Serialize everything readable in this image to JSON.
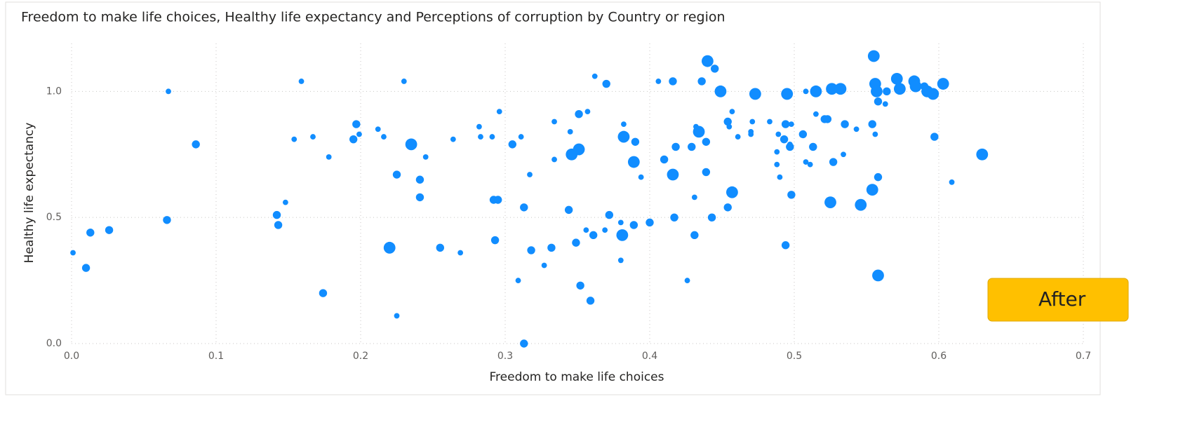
{
  "chart_data": {
    "type": "scatter",
    "title": "Freedom to make life choices, Healthy life expectancy and Perceptions of corruption by Country or region",
    "x_label": "Freedom to make life choices",
    "y_label": "Healthy life expectancy",
    "annotation": "After",
    "color": "#118dff",
    "grid": true,
    "xlim": [
      0,
      0.7
    ],
    "ylim": [
      0,
      1.19
    ],
    "xticks": [
      {
        "value": 0,
        "label": "0.0"
      },
      0.1,
      0.2,
      0.3,
      0.4,
      0.5,
      0.6,
      0.7
    ],
    "yticks": [
      {
        "value": 0,
        "label": "0.0"
      },
      0.5,
      {
        "value": 1,
        "label": "1.0"
      }
    ],
    "x": [
      0.001,
      0.01,
      0.013,
      0.026,
      0.067,
      0.066,
      0.086,
      0.142,
      0.143,
      0.148,
      0.154,
      0.159,
      0.167,
      0.174,
      0.178,
      0.195,
      0.197,
      0.199,
      0.212,
      0.216,
      0.22,
      0.225,
      0.225,
      0.23,
      0.235,
      0.241,
      0.241,
      0.245,
      0.255,
      0.264,
      0.269,
      0.282,
      0.283,
      0.291,
      0.292,
      0.293,
      0.295,
      0.296,
      0.305,
      0.309,
      0.311,
      0.313,
      0.313,
      0.317,
      0.318,
      0.327,
      0.332,
      0.334,
      0.334,
      0.344,
      0.345,
      0.346,
      0.349,
      0.351,
      0.351,
      0.352,
      0.357,
      0.356,
      0.359,
      0.361,
      0.362,
      0.37,
      0.369,
      0.372,
      0.38,
      0.38,
      0.381,
      0.382,
      0.382,
      0.389,
      0.389,
      0.39,
      0.394,
      0.4,
      0.406,
      0.41,
      0.416,
      0.416,
      0.417,
      0.418,
      0.426,
      0.429,
      0.431,
      0.431,
      0.432,
      0.434,
      0.436,
      0.439,
      0.439,
      0.44,
      0.443,
      0.445,
      0.449,
      0.454,
      0.454,
      0.455,
      0.457,
      0.457,
      0.461,
      0.47,
      0.47,
      0.471,
      0.473,
      0.483,
      0.488,
      0.488,
      0.489,
      0.49,
      0.493,
      0.494,
      0.494,
      0.495,
      0.497,
      0.497,
      0.498,
      0.498,
      0.506,
      0.508,
      0.508,
      0.511,
      0.513,
      0.515,
      0.515,
      0.521,
      0.523,
      0.525,
      0.526,
      0.527,
      0.532,
      0.534,
      0.535,
      0.543,
      0.546,
      0.554,
      0.554,
      0.555,
      0.556,
      0.556,
      0.557,
      0.558,
      0.558,
      0.558,
      0.563,
      0.564,
      0.571,
      0.573,
      0.583,
      0.584,
      0.59,
      0.592,
      0.596,
      0.597,
      0.603,
      0.609,
      0.63
    ],
    "values": [
      0.36,
      0.3,
      0.44,
      0.45,
      1.0,
      0.49,
      0.79,
      0.51,
      0.47,
      0.56,
      0.81,
      1.04,
      0.82,
      0.2,
      0.74,
      0.81,
      0.87,
      0.83,
      0.85,
      0.82,
      0.38,
      0.11,
      0.67,
      1.04,
      0.79,
      0.65,
      0.58,
      0.74,
      0.38,
      0.81,
      0.36,
      0.86,
      0.82,
      0.82,
      0.57,
      0.41,
      0.57,
      0.92,
      0.79,
      0.25,
      0.82,
      0.0,
      0.54,
      0.67,
      0.37,
      0.31,
      0.38,
      0.73,
      0.88,
      0.53,
      0.84,
      0.75,
      0.4,
      0.77,
      0.91,
      0.23,
      0.92,
      0.45,
      0.17,
      0.43,
      1.06,
      1.03,
      0.45,
      0.51,
      0.48,
      0.33,
      0.43,
      0.87,
      0.82,
      0.47,
      0.72,
      0.8,
      0.66,
      0.48,
      1.04,
      0.73,
      1.04,
      0.67,
      0.5,
      0.78,
      0.25,
      0.78,
      0.43,
      0.58,
      0.86,
      0.84,
      1.04,
      0.8,
      0.68,
      1.12,
      0.5,
      1.09,
      1.0,
      0.54,
      0.88,
      0.86,
      0.6,
      0.92,
      0.82,
      0.84,
      0.83,
      0.88,
      0.99,
      0.88,
      0.76,
      0.71,
      0.83,
      0.66,
      0.81,
      0.39,
      0.87,
      0.99,
      0.78,
      0.79,
      0.87,
      0.59,
      0.83,
      0.72,
      1.0,
      0.71,
      0.78,
      1.0,
      0.91,
      0.89,
      0.89,
      0.56,
      1.01,
      0.72,
      1.01,
      0.75,
      0.87,
      0.85,
      0.55,
      0.87,
      0.61,
      1.14,
      0.83,
      1.03,
      1.0,
      0.96,
      0.66,
      0.27,
      0.95,
      1.0,
      1.05,
      1.01,
      1.04,
      1.02,
      1.02,
      1.0,
      0.99,
      0.82,
      1.03,
      0.64,
      0.75
    ],
    "sizes": [
      0.05,
      0.15,
      0.15,
      0.15,
      0.05,
      0.15,
      0.15,
      0.15,
      0.15,
      0.05,
      0.05,
      0.05,
      0.05,
      0.15,
      0.05,
      0.15,
      0.15,
      0.05,
      0.05,
      0.05,
      0.3,
      0.05,
      0.15,
      0.05,
      0.3,
      0.15,
      0.15,
      0.05,
      0.15,
      0.05,
      0.05,
      0.05,
      0.05,
      0.05,
      0.15,
      0.15,
      0.15,
      0.05,
      0.15,
      0.05,
      0.05,
      0.15,
      0.15,
      0.05,
      0.15,
      0.05,
      0.15,
      0.05,
      0.05,
      0.15,
      0.05,
      0.3,
      0.15,
      0.3,
      0.15,
      0.15,
      0.05,
      0.05,
      0.15,
      0.15,
      0.05,
      0.15,
      0.05,
      0.15,
      0.05,
      0.05,
      0.3,
      0.05,
      0.3,
      0.15,
      0.3,
      0.15,
      0.05,
      0.15,
      0.05,
      0.15,
      0.15,
      0.3,
      0.15,
      0.15,
      0.05,
      0.15,
      0.15,
      0.05,
      0.05,
      0.3,
      0.15,
      0.15,
      0.15,
      0.3,
      0.15,
      0.15,
      0.3,
      0.15,
      0.15,
      0.05,
      0.3,
      0.05,
      0.05,
      0.05,
      0.05,
      0.05,
      0.3,
      0.05,
      0.05,
      0.05,
      0.05,
      0.05,
      0.15,
      0.15,
      0.15,
      0.3,
      0.15,
      0.05,
      0.05,
      0.15,
      0.15,
      0.05,
      0.05,
      0.05,
      0.15,
      0.3,
      0.05,
      0.15,
      0.15,
      0.3,
      0.3,
      0.15,
      0.3,
      0.05,
      0.15,
      0.05,
      0.3,
      0.15,
      0.3,
      0.3,
      0.05,
      0.3,
      0.3,
      0.15,
      0.15,
      0.3,
      0.05,
      0.15,
      0.3,
      0.3,
      0.3,
      0.3,
      0.15,
      0.3,
      0.3,
      0.15,
      0.3,
      0.05,
      0.3
    ]
  }
}
